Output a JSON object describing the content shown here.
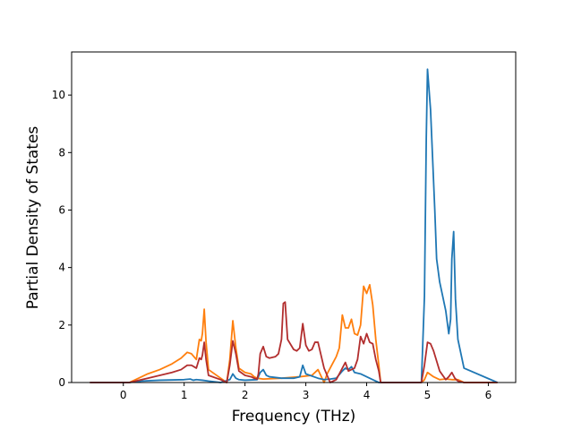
{
  "chart_data": {
    "type": "line",
    "title": "",
    "xlabel": "Frequency (THz)",
    "ylabel": "Partial Density of States",
    "xlim": [
      -0.85,
      6.45
    ],
    "ylim": [
      0,
      11.5
    ],
    "xticks": [
      0,
      1,
      2,
      3,
      4,
      5,
      6
    ],
    "yticks": [
      0,
      2,
      4,
      6,
      8,
      10
    ],
    "grid": false,
    "legend": "none",
    "series": [
      {
        "color": "#ff7f0e",
        "x": [
          -0.55,
          0.1,
          0.2,
          0.4,
          0.6,
          0.8,
          0.95,
          1.05,
          1.12,
          1.2,
          1.25,
          1.28,
          1.3,
          1.33,
          1.36,
          1.4,
          1.6,
          1.7,
          1.75,
          1.8,
          1.85,
          1.9,
          2.0,
          2.1,
          2.15,
          2.2,
          2.3,
          2.6,
          2.9,
          3.1,
          3.2,
          3.3,
          3.35,
          3.4,
          3.5,
          3.55,
          3.6,
          3.65,
          3.7,
          3.75,
          3.8,
          3.85,
          3.9,
          3.95,
          4.0,
          4.05,
          4.1,
          4.15,
          4.2,
          4.23,
          4.9,
          4.95,
          5.0,
          5.1,
          5.2,
          5.3,
          5.4,
          5.5,
          5.6,
          6.15
        ],
        "y": [
          0,
          0,
          0.1,
          0.3,
          0.45,
          0.65,
          0.85,
          1.05,
          1.0,
          0.8,
          1.5,
          1.45,
          1.7,
          2.55,
          1.4,
          0.45,
          0.15,
          0,
          0.8,
          2.15,
          1.2,
          0.5,
          0.35,
          0.3,
          0.2,
          0.15,
          0.12,
          0.15,
          0.2,
          0.25,
          0.45,
          0,
          0.3,
          0.5,
          0.9,
          1.2,
          2.35,
          1.9,
          1.9,
          2.2,
          1.7,
          1.65,
          2.0,
          3.35,
          3.1,
          3.4,
          2.7,
          1.5,
          0.6,
          0,
          0,
          0.1,
          0.35,
          0.2,
          0.1,
          0.12,
          0.1,
          0.1,
          0,
          0
        ]
      },
      {
        "color": "#1f77b4",
        "x": [
          -0.55,
          0.1,
          0.3,
          0.6,
          1.0,
          1.1,
          1.15,
          1.2,
          1.3,
          1.4,
          1.6,
          1.75,
          1.8,
          1.85,
          1.9,
          2.0,
          2.2,
          2.25,
          2.3,
          2.35,
          2.4,
          2.6,
          2.8,
          2.9,
          2.95,
          3.0,
          3.2,
          3.3,
          3.4,
          3.5,
          3.6,
          3.65,
          3.7,
          3.75,
          3.8,
          3.9,
          4.0,
          4.1,
          4.2,
          4.9,
          4.95,
          4.98,
          5.0,
          5.05,
          5.08,
          5.12,
          5.15,
          5.2,
          5.25,
          5.3,
          5.35,
          5.38,
          5.4,
          5.43,
          5.46,
          5.5,
          5.55,
          5.6,
          6.15
        ],
        "y": [
          0,
          0,
          0.05,
          0.08,
          0.1,
          0.12,
          0.08,
          0.1,
          0.08,
          0.05,
          0,
          0.1,
          0.3,
          0.15,
          0.1,
          0.08,
          0.1,
          0.35,
          0.45,
          0.25,
          0.2,
          0.15,
          0.15,
          0.2,
          0.6,
          0.3,
          0.15,
          0.1,
          0.12,
          0.15,
          0.4,
          0.5,
          0.45,
          0.55,
          0.35,
          0.3,
          0.2,
          0.1,
          0,
          0,
          3.0,
          8.5,
          10.9,
          9.5,
          8.0,
          6.0,
          4.3,
          3.5,
          3.0,
          2.5,
          1.7,
          2.2,
          4.3,
          5.25,
          2.9,
          1.5,
          1.0,
          0.5,
          0
        ]
      },
      {
        "color": "#b22e2e",
        "x": [
          -0.55,
          0.1,
          0.2,
          0.4,
          0.6,
          0.8,
          0.95,
          1.05,
          1.12,
          1.2,
          1.25,
          1.28,
          1.3,
          1.33,
          1.36,
          1.4,
          1.6,
          1.7,
          1.75,
          1.8,
          1.85,
          1.9,
          2.0,
          2.1,
          2.15,
          2.2,
          2.22,
          2.25,
          2.3,
          2.35,
          2.4,
          2.5,
          2.55,
          2.6,
          2.63,
          2.66,
          2.7,
          2.8,
          2.85,
          2.9,
          2.95,
          3.0,
          3.05,
          3.1,
          3.15,
          3.2,
          3.3,
          3.4,
          3.5,
          3.55,
          3.6,
          3.65,
          3.7,
          3.75,
          3.8,
          3.85,
          3.9,
          3.95,
          4.0,
          4.05,
          4.1,
          4.15,
          4.2,
          4.23,
          4.9,
          4.95,
          5.0,
          5.05,
          5.1,
          5.2,
          5.3,
          5.35,
          5.4,
          5.45,
          5.5,
          5.6,
          6.15
        ],
        "y": [
          0,
          0,
          0.05,
          0.15,
          0.25,
          0.35,
          0.45,
          0.6,
          0.6,
          0.5,
          0.85,
          0.8,
          0.95,
          1.4,
          0.8,
          0.25,
          0.1,
          0,
          0.6,
          1.45,
          1.0,
          0.4,
          0.25,
          0.2,
          0.15,
          0.12,
          0.3,
          1.0,
          1.25,
          0.9,
          0.85,
          0.9,
          1.0,
          1.5,
          2.75,
          2.8,
          1.5,
          1.15,
          1.1,
          1.2,
          2.05,
          1.3,
          1.1,
          1.15,
          1.4,
          1.4,
          0.5,
          0,
          0.1,
          0.3,
          0.5,
          0.7,
          0.4,
          0.45,
          0.5,
          0.8,
          1.6,
          1.35,
          1.7,
          1.4,
          1.35,
          0.8,
          0.4,
          0,
          0,
          0.6,
          1.4,
          1.35,
          1.1,
          0.4,
          0.1,
          0.2,
          0.35,
          0.15,
          0.05,
          0,
          0
        ]
      }
    ]
  }
}
